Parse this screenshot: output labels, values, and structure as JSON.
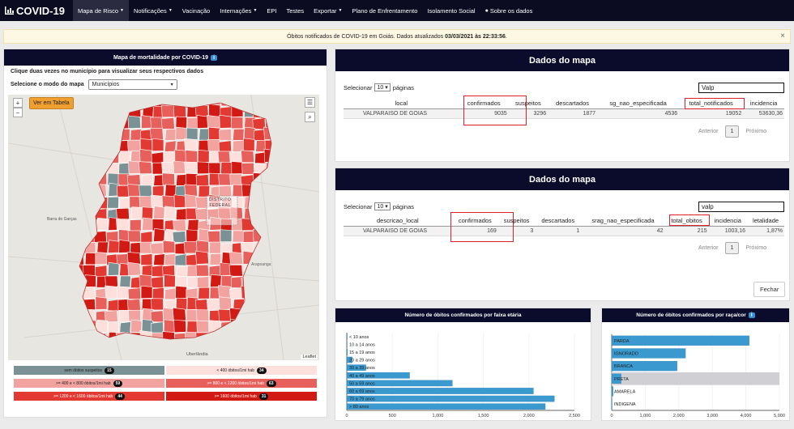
{
  "nav": {
    "brand": "COVID-19",
    "items": [
      {
        "label": "Mapa de Risco",
        "caret": true
      },
      {
        "label": "Notificações",
        "caret": true
      },
      {
        "label": "Vacinação",
        "caret": false
      },
      {
        "label": "Internações",
        "caret": true
      },
      {
        "label": "EPI",
        "caret": false
      },
      {
        "label": "Testes",
        "caret": false
      },
      {
        "label": "Exportar",
        "caret": true
      },
      {
        "label": "Plano de Enfrentamento",
        "caret": false
      },
      {
        "label": "Isolamento Social",
        "caret": false
      },
      {
        "label": "Sobre os dados",
        "caret": false
      }
    ]
  },
  "alert": {
    "text": "Óbitos notificados de COVID-19 em Goiás. Dados atualizados",
    "date": "03/03/2021 às 22:33:56",
    "suffix": ".",
    "close": "×"
  },
  "map_panel": {
    "title": "Mapa de mortalidade por COVID-19",
    "info": "i",
    "instruction": "Clique duas vezes no município para visualizar seus respectivos dados",
    "mode_label": "Selecione o modo do mapa",
    "mode_value": "Municípios",
    "view_table": "Ver em Tabela",
    "zoom_in": "+",
    "zoom_out": "−",
    "attribution": "Leaflet",
    "places": [
      {
        "name": "DISTRITO",
        "name2": "FEDERAL"
      },
      {
        "name": "Barra do Garças"
      },
      {
        "name": "Uberlândia"
      },
      {
        "name": "Arapoanga"
      }
    ],
    "legend": [
      {
        "label": "sem óbitos suspeitos",
        "count": "15",
        "color": "#7a9195"
      },
      {
        "label": "< 400 óbitos/1mi hab",
        "count": "34",
        "color": "#fde0dc"
      },
      {
        "label": ">= 400 e < 800 óbitos/1mi hab",
        "count": "59",
        "color": "#f2a39f"
      },
      {
        "label": ">= 800 e < 1200 óbitos/1mi hab",
        "count": "63",
        "color": "#e8605b"
      },
      {
        "label": ">= 1200 e < 1600 óbitos/1mi hab",
        "count": "44",
        "color": "#e23a32"
      },
      {
        "label": ">= 1600 óbitos/1mi hab",
        "count": "31",
        "color": "#d21a15"
      }
    ],
    "colors": [
      "#d21a15",
      "#e23a32",
      "#e8605b",
      "#f2a39f",
      "#fde0dc",
      "#7a9195"
    ]
  },
  "table1": {
    "title": "Dados do mapa",
    "select_label": "Selecionar",
    "page_size": "10",
    "pages_label": "páginas",
    "search": "Valp",
    "columns": [
      "local",
      "confirmados",
      "suspeitos",
      "descartados",
      "sg_nao_especificada",
      "total_notificados",
      "incidencia"
    ],
    "rows": [
      [
        "VALPARAISO DE GOIAS",
        "9035",
        "3296",
        "1877",
        "4536",
        "19052",
        "53630,36"
      ]
    ],
    "prev": "Anterior",
    "page": "1",
    "next": "Próximo"
  },
  "table2": {
    "title": "Dados do mapa",
    "select_label": "Selecionar",
    "page_size": "10",
    "pages_label": "páginas",
    "search": "valp",
    "columns": [
      "descricao_local",
      "confirmados",
      "suspeitos",
      "descartados",
      "srag_nao_especificada",
      "total_obitos",
      "incidencia",
      "letalidade"
    ],
    "rows": [
      [
        "VALPARAISO DE GOIAS",
        "169",
        "3",
        "1",
        "42",
        "215",
        "1003,16",
        "1,87%"
      ]
    ],
    "prev": "Anterior",
    "page": "1",
    "next": "Próximo",
    "close_button": "Fechar"
  },
  "chart_data": [
    {
      "type": "bar",
      "orientation": "horizontal",
      "title": "Número de óbitos confirmados por faixa etária",
      "categories": [
        "< 10 anos",
        "10 a 14 anos",
        "15 a 19 anos",
        "20 a 29 anos",
        "30 a 39 anos",
        "40 a 49 anos",
        "50 a 59 anos",
        "60 a 69 anos",
        "70 a 79 anos",
        "> 80 anos"
      ],
      "values": [
        5,
        3,
        8,
        60,
        210,
        690,
        1160,
        2050,
        2280,
        2180
      ],
      "xlim": [
        0,
        2500
      ],
      "ticks": [
        "0",
        "500",
        "1,000",
        "1,500",
        "2,000",
        "2,500"
      ],
      "tick_values": [
        0,
        500,
        1000,
        1500,
        2000,
        2500
      ],
      "color": "#3a9ad0"
    },
    {
      "type": "bar",
      "orientation": "horizontal",
      "title": "Número de óbitos confirmados por raça/cor",
      "info": "i",
      "categories": [
        "PARDA",
        "IGNORADO",
        "BRANCA",
        "PRETA",
        "AMARELA",
        "INDIGENA"
      ],
      "values": [
        4100,
        2200,
        1950,
        280,
        40,
        8
      ],
      "highlight": "PRETA",
      "xlim": [
        0,
        5000
      ],
      "ticks": [
        "0",
        "1,000",
        "2,000",
        "3,000",
        "4,000",
        "5,000"
      ],
      "tick_values": [
        0,
        1000,
        2000,
        3000,
        4000,
        5000
      ],
      "color": "#3a9ad0"
    }
  ]
}
